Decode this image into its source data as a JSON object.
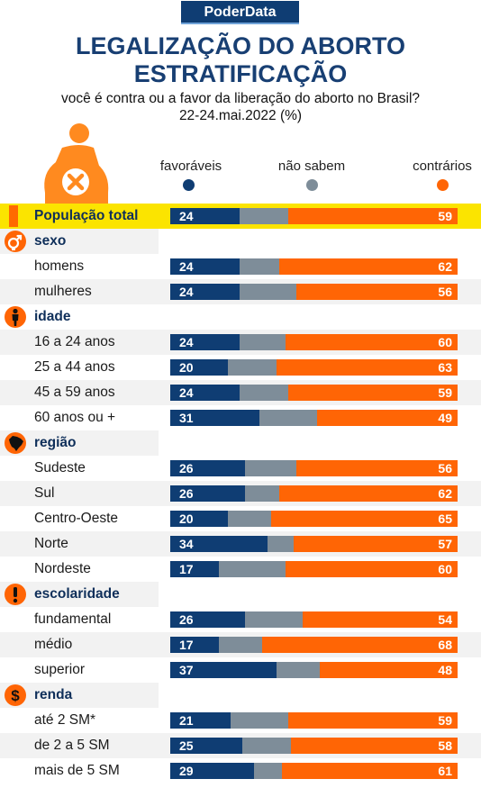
{
  "brand": "PoderData",
  "title_line1": "LEGALIZAÇÃO DO ABORTO",
  "title_line2": "ESTRATIFICAÇÃO",
  "subtitle_line1": "você é contra ou a favor da liberação do aborto no Brasil?",
  "subtitle_line2": "22-24.mai.2022 (%)",
  "colors": {
    "favoraveis": "#0f3d73",
    "nao_sabem": "#7e8d99",
    "contrarios": "#ff6505",
    "highlight": "#fbe400"
  },
  "legend": [
    {
      "label": "favoráveis",
      "color": "#0f3d73"
    },
    {
      "label": "não sabem",
      "color": "#7e8d99"
    },
    {
      "label": "contrários",
      "color": "#ff6505"
    }
  ],
  "chart_data": {
    "type": "bar",
    "orientation": "horizontal",
    "stacked": true,
    "series": [
      {
        "name": "favoráveis"
      },
      {
        "name": "não sabem"
      },
      {
        "name": "contrários"
      }
    ],
    "rows": [
      {
        "kind": "total",
        "label": "População total",
        "fav": 24,
        "con": 59
      },
      {
        "kind": "header",
        "label": "sexo",
        "icon": "gender-icon"
      },
      {
        "kind": "item",
        "label": "homens",
        "fav": 24,
        "con": 62
      },
      {
        "kind": "item",
        "label": "mulheres",
        "fav": 24,
        "con": 56
      },
      {
        "kind": "header",
        "label": "idade",
        "icon": "person-icon"
      },
      {
        "kind": "item",
        "label": "16 a 24 anos",
        "fav": 24,
        "con": 60
      },
      {
        "kind": "item",
        "label": "25 a 44 anos",
        "fav": 20,
        "con": 63
      },
      {
        "kind": "item",
        "label": "45 a 59 anos",
        "fav": 24,
        "con": 59
      },
      {
        "kind": "item",
        "label": "60 anos ou +",
        "fav": 31,
        "con": 49
      },
      {
        "kind": "header",
        "label": "região",
        "icon": "brazil-map-icon"
      },
      {
        "kind": "item",
        "label": "Sudeste",
        "fav": 26,
        "con": 56
      },
      {
        "kind": "item",
        "label": "Sul",
        "fav": 26,
        "con": 62
      },
      {
        "kind": "item",
        "label": "Centro-Oeste",
        "fav": 20,
        "con": 65
      },
      {
        "kind": "item",
        "label": "Norte",
        "fav": 34,
        "con": 57
      },
      {
        "kind": "item",
        "label": "Nordeste",
        "fav": 17,
        "con": 60
      },
      {
        "kind": "header",
        "label": "escolaridade",
        "icon": "exclamation-icon"
      },
      {
        "kind": "item",
        "label": "fundamental",
        "fav": 26,
        "con": 54
      },
      {
        "kind": "item",
        "label": "médio",
        "fav": 17,
        "con": 68
      },
      {
        "kind": "item",
        "label": "superior",
        "fav": 37,
        "con": 48
      },
      {
        "kind": "header",
        "label": "renda",
        "icon": "dollar-icon"
      },
      {
        "kind": "item",
        "label": "até 2 SM*",
        "fav": 21,
        "con": 59
      },
      {
        "kind": "item",
        "label": "de 2 a 5 SM",
        "fav": 25,
        "con": 58
      },
      {
        "kind": "item",
        "label": "mais de 5 SM",
        "fav": 29,
        "con": 61
      }
    ]
  }
}
